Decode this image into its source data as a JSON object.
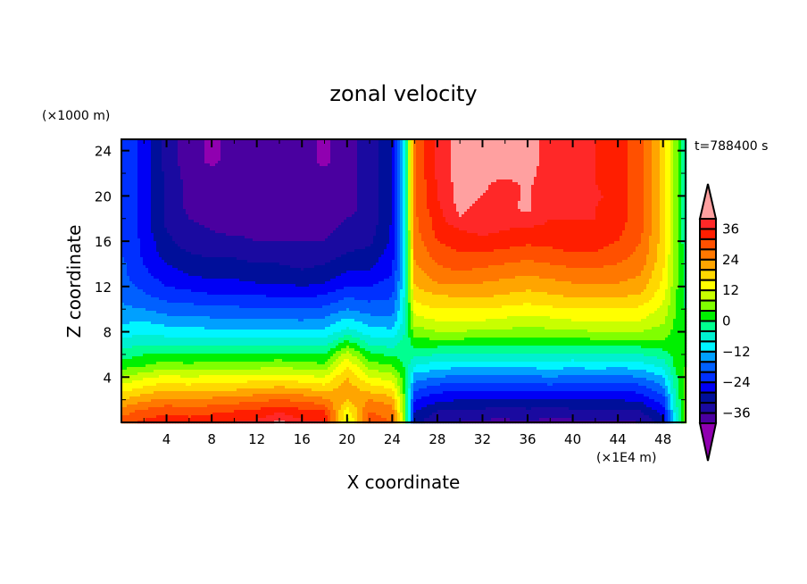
{
  "chart_data": {
    "type": "heatmap",
    "title": "zonal velocity",
    "xlabel": "X coordinate",
    "ylabel": "Z coordinate",
    "x_units": "(×1E4 m)",
    "y_units": "(×1000 m)",
    "time_label": "t=788400 s",
    "xlim": [
      0,
      50
    ],
    "ylim": [
      0,
      25
    ],
    "x_ticks": [
      4,
      8,
      12,
      16,
      20,
      24,
      28,
      32,
      36,
      40,
      44,
      48
    ],
    "y_ticks": [
      4,
      8,
      12,
      16,
      20,
      24
    ],
    "x_minor_step": 2,
    "y_minor_step": 2,
    "grid": false,
    "colorbar": {
      "levels": [
        -40,
        -36,
        -32,
        -28,
        -24,
        -20,
        -16,
        -12,
        -8,
        -4,
        0,
        4,
        8,
        12,
        16,
        20,
        24,
        28,
        32,
        36,
        40
      ],
      "colors": [
        "#9000b0",
        "#4a00a0",
        "#1a0aa0",
        "#000f9a",
        "#0000f5",
        "#0030ff",
        "#0060ff",
        "#00a0ff",
        "#00f5ff",
        "#00f0d0",
        "#00ff90",
        "#00f000",
        "#80ff00",
        "#c8ff00",
        "#ffff00",
        "#ffd800",
        "#ffa500",
        "#ff7800",
        "#ff5000",
        "#ff1e00",
        "#ff2828",
        "#ffa0a0"
      ],
      "labels": [
        "36",
        "24",
        "12",
        "0",
        "−12",
        "−24",
        "−36"
      ],
      "label_values": [
        36,
        24,
        12,
        0,
        -12,
        -24,
        -36
      ],
      "extend": "both"
    },
    "x": [
      0,
      2,
      4,
      6,
      8,
      10,
      12,
      14,
      16,
      18,
      20,
      22,
      24,
      25,
      26,
      28,
      30,
      32,
      34,
      36,
      38,
      40,
      42,
      44,
      46,
      48,
      49,
      50
    ],
    "z": [
      0,
      1,
      2,
      3,
      4,
      5,
      6,
      7,
      8,
      9,
      10,
      11,
      12,
      13,
      14,
      15,
      16,
      17,
      18,
      19,
      20,
      21,
      22,
      23,
      24,
      25
    ],
    "u": [
      [
        30,
        33,
        35,
        34,
        35,
        36,
        37,
        41,
        37,
        36,
        10,
        30,
        28,
        10,
        -30,
        -36,
        -36,
        -37,
        -37,
        -36,
        -38,
        -37,
        -37,
        -37,
        -36,
        -30,
        -10,
        5
      ],
      [
        26,
        29,
        31,
        30,
        31,
        32,
        33,
        35,
        33,
        32,
        14,
        28,
        26,
        8,
        -28,
        -32,
        -33,
        -33,
        -34,
        -33,
        -34,
        -33,
        -33,
        -33,
        -32,
        -26,
        -8,
        6
      ],
      [
        20,
        23,
        25,
        24,
        25,
        26,
        27,
        28,
        27,
        25,
        20,
        24,
        22,
        6,
        -24,
        -27,
        -28,
        -28,
        -29,
        -28,
        -28,
        -28,
        -28,
        -28,
        -27,
        -22,
        -6,
        6
      ],
      [
        14,
        17,
        19,
        18,
        19,
        19,
        20,
        21,
        20,
        18,
        22,
        18,
        16,
        4,
        -19,
        -22,
        -23,
        -23,
        -23,
        -23,
        -22,
        -23,
        -23,
        -23,
        -22,
        -17,
        -4,
        6
      ],
      [
        8,
        11,
        13,
        12,
        13,
        13,
        14,
        14,
        13,
        12,
        20,
        12,
        10,
        2,
        -14,
        -16,
        -17,
        -17,
        -17,
        -17,
        -16,
        -17,
        -17,
        -17,
        -16,
        -12,
        -2,
        5
      ],
      [
        2,
        4,
        6,
        5,
        6,
        6,
        6,
        7,
        6,
        5,
        16,
        6,
        4,
        0,
        -8,
        -10,
        -11,
        -11,
        -11,
        -11,
        -10,
        -11,
        -10,
        -11,
        -10,
        -7,
        0,
        4
      ],
      [
        -2,
        0,
        1,
        0,
        1,
        1,
        1,
        1,
        0,
        0,
        10,
        1,
        -1,
        -1,
        -3,
        -4,
        -4,
        -4,
        -4,
        -4,
        -4,
        -5,
        -4,
        -4,
        -4,
        -2,
        1,
        3
      ],
      [
        -6,
        -5,
        -5,
        -6,
        -6,
        -6,
        -6,
        -6,
        -6,
        -6,
        2,
        -5,
        -6,
        -3,
        2,
        2,
        2,
        1,
        2,
        1,
        2,
        1,
        2,
        2,
        2,
        3,
        2,
        2
      ],
      [
        -10,
        -9,
        -10,
        -10,
        -11,
        -11,
        -11,
        -11,
        -11,
        -11,
        -6,
        -10,
        -11,
        -5,
        6,
        8,
        8,
        7,
        7,
        6,
        7,
        7,
        8,
        8,
        8,
        6,
        3,
        1
      ],
      [
        -13,
        -12,
        -14,
        -14,
        -15,
        -15,
        -15,
        -15,
        -16,
        -15,
        -11,
        -14,
        -15,
        -7,
        10,
        12,
        12,
        12,
        11,
        10,
        11,
        12,
        12,
        12,
        12,
        9,
        4,
        0
      ],
      [
        -15,
        -16,
        -18,
        -18,
        -19,
        -19,
        -20,
        -20,
        -20,
        -19,
        -16,
        -18,
        -18,
        -8,
        14,
        16,
        16,
        16,
        15,
        14,
        15,
        16,
        16,
        16,
        15,
        11,
        5,
        0
      ],
      [
        -17,
        -19,
        -21,
        -22,
        -23,
        -23,
        -23,
        -24,
        -24,
        -23,
        -20,
        -21,
        -20,
        -9,
        17,
        19,
        20,
        20,
        19,
        18,
        19,
        20,
        20,
        20,
        19,
        13,
        5,
        -1
      ],
      [
        -18,
        -21,
        -24,
        -25,
        -26,
        -26,
        -27,
        -27,
        -28,
        -27,
        -24,
        -24,
        -22,
        -10,
        20,
        23,
        23,
        23,
        22,
        21,
        22,
        23,
        23,
        23,
        22,
        15,
        6,
        -1
      ],
      [
        -19,
        -23,
        -26,
        -28,
        -29,
        -29,
        -30,
        -30,
        -31,
        -30,
        -27,
        -27,
        -24,
        -11,
        22,
        26,
        27,
        26,
        25,
        24,
        25,
        26,
        26,
        26,
        24,
        16,
        6,
        -2
      ],
      [
        -19,
        -24,
        -28,
        -30,
        -31,
        -31,
        -32,
        -32,
        -33,
        -32,
        -30,
        -29,
        -25,
        -11,
        24,
        28,
        30,
        29,
        28,
        27,
        28,
        29,
        29,
        28,
        26,
        17,
        6,
        -2
      ],
      [
        -20,
        -25,
        -30,
        -32,
        -33,
        -33,
        -34,
        -34,
        -35,
        -34,
        -32,
        -31,
        -26,
        -12,
        25,
        30,
        32,
        32,
        31,
        30,
        31,
        32,
        32,
        30,
        27,
        18,
        7,
        -2
      ],
      [
        -20,
        -25,
        -31,
        -34,
        -35,
        -35,
        -36,
        -36,
        -36,
        -36,
        -34,
        -33,
        -27,
        -12,
        26,
        32,
        34,
        35,
        34,
        33,
        33,
        34,
        34,
        32,
        28,
        18,
        7,
        -3
      ],
      [
        -20,
        -26,
        -32,
        -35,
        -36,
        -37,
        -37,
        -37,
        -37,
        -37,
        -35,
        -34,
        -27,
        -12,
        27,
        33,
        36,
        37,
        36,
        35,
        35,
        35,
        35,
        33,
        29,
        19,
        7,
        -3
      ],
      [
        -20,
        -26,
        -33,
        -36,
        -37,
        -38,
        -38,
        -37,
        -38,
        -38,
        -36,
        -35,
        -28,
        -12,
        27,
        34,
        40,
        38,
        38,
        39,
        36,
        36,
        36,
        34,
        29,
        19,
        7,
        -3
      ],
      [
        -20,
        -26,
        -33,
        -37,
        -38,
        -38,
        -38,
        -37,
        -38,
        -38,
        -37,
        -35,
        -28,
        -12,
        28,
        35,
        41,
        39,
        39,
        41,
        36,
        37,
        36,
        34,
        29,
        19,
        7,
        -3
      ],
      [
        -20,
        -26,
        -33,
        -37,
        -38,
        -38,
        -38,
        -37,
        -38,
        -38,
        -37,
        -35,
        -28,
        -12,
        28,
        36,
        42,
        40,
        38,
        41,
        36,
        37,
        37,
        34,
        29,
        19,
        7,
        -3
      ],
      [
        -20,
        -26,
        -33,
        -37,
        -38,
        -38,
        -38,
        -37,
        -38,
        -38,
        -37,
        -35,
        -28,
        -12,
        28,
        36,
        42,
        41,
        38,
        41,
        36,
        36,
        36,
        34,
        29,
        19,
        7,
        -3
      ],
      [
        -20,
        -26,
        -33,
        -38,
        -38,
        -38,
        -38,
        -37,
        -38,
        -39,
        -37,
        -35,
        -28,
        -12,
        28,
        37,
        42,
        42,
        42,
        42,
        37,
        36,
        36,
        34,
        29,
        19,
        7,
        -3
      ],
      [
        -20,
        -26,
        -34,
        -38,
        -41,
        -38,
        -38,
        -37,
        -38,
        -41,
        -37,
        -35,
        -28,
        -12,
        28,
        37,
        42,
        42,
        42,
        42,
        38,
        36,
        36,
        34,
        29,
        19,
        7,
        -3
      ],
      [
        -20,
        -26,
        -34,
        -38,
        -41,
        -38,
        -38,
        -37,
        -38,
        -41,
        -37,
        -35,
        -28,
        -12,
        28,
        37,
        42,
        42,
        42,
        42,
        38,
        36,
        36,
        34,
        29,
        19,
        7,
        -3
      ],
      [
        -20,
        -26,
        -34,
        -38,
        -41,
        -38,
        -38,
        -37,
        -38,
        -41,
        -37,
        -35,
        -28,
        -12,
        28,
        37,
        42,
        42,
        42,
        42,
        38,
        36,
        36,
        34,
        29,
        19,
        7,
        -3
      ]
    ]
  }
}
